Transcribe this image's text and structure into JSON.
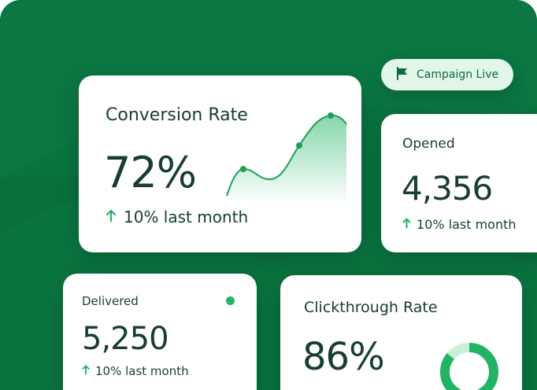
{
  "badge": {
    "label": "Campaign Live",
    "icon": "flag-icon"
  },
  "conversion": {
    "title": "Conversion Rate",
    "value": "72%",
    "delta": "10% last month"
  },
  "opened": {
    "title": "Opened",
    "value": "4,356",
    "delta": "10% last month"
  },
  "delivered": {
    "title": "Delivered",
    "value": "5,250",
    "delta": "10% last month"
  },
  "clickthrough": {
    "title": "Clickthrough Rate",
    "value": "86%",
    "donut_fraction": 0.86
  },
  "colors": {
    "background": "#0a7440",
    "accent": "#22b466",
    "text": "#183d33",
    "badge_bg": "#e2f6ea"
  }
}
